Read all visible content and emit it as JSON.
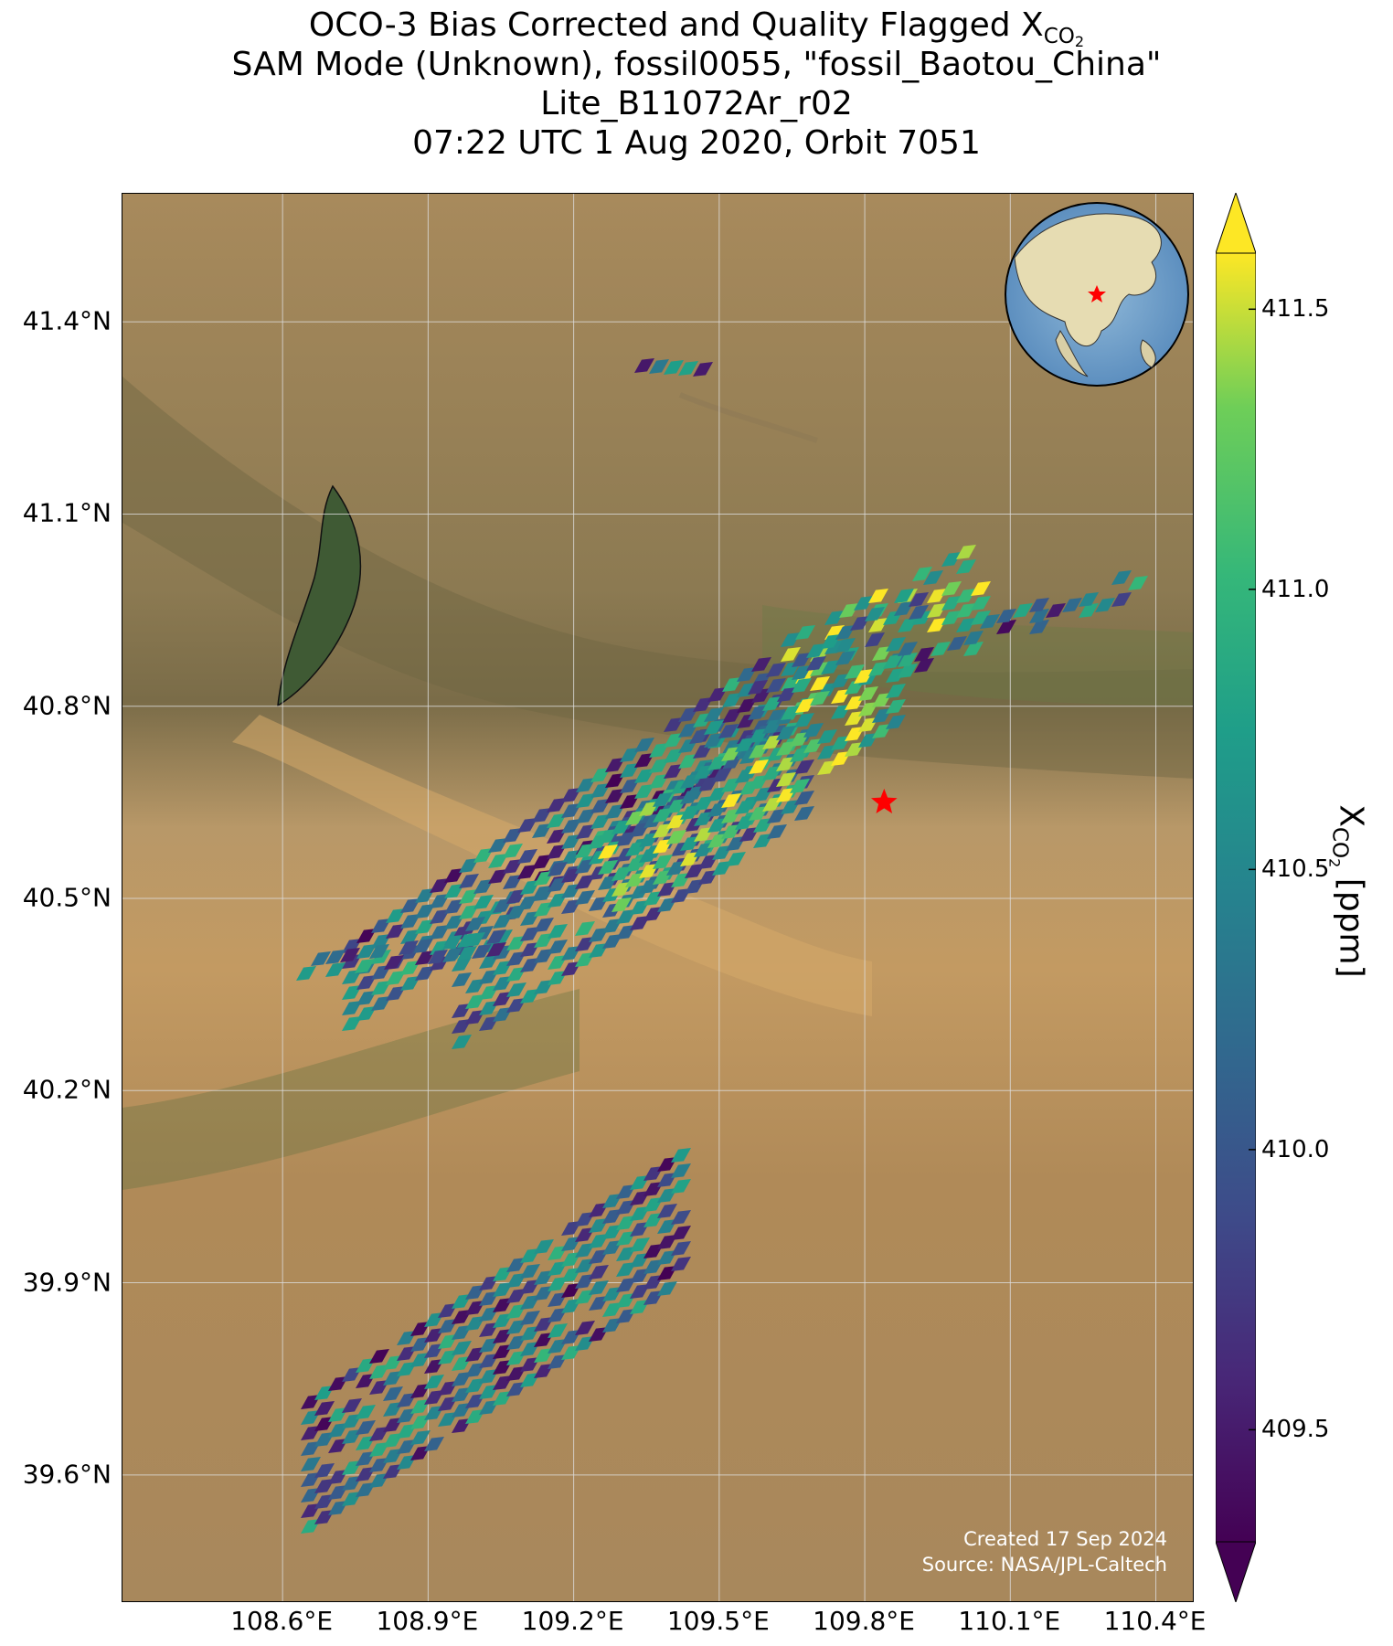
{
  "title": {
    "line1_prefix": "OCO-3 Bias Corrected and Quality Flagged X",
    "line1_sub": "CO",
    "line1_subsub": "2",
    "line2": "SAM Mode (Unknown), fossil0055, \"fossil_Baotou_China\"",
    "line3": "Lite_B11072Ar_r02",
    "line4": "07:22 UTC 1 Aug 2020, Orbit 7051"
  },
  "map": {
    "lon_range": [
      108.27,
      110.48
    ],
    "lat_range": [
      39.4,
      41.6
    ],
    "lon_ticks": [
      "108.6°E",
      "108.9°E",
      "109.2°E",
      "109.5°E",
      "109.8°E",
      "110.1°E",
      "110.4°E"
    ],
    "lon_tick_values": [
      108.6,
      108.9,
      109.2,
      109.5,
      109.8,
      110.1,
      110.4
    ],
    "lat_ticks": [
      "41.4°N",
      "41.1°N",
      "40.8°N",
      "40.5°N",
      "40.2°N",
      "39.9°N",
      "39.6°N"
    ],
    "lat_tick_values": [
      41.4,
      41.1,
      40.8,
      40.5,
      40.2,
      39.9,
      39.6
    ],
    "target_marker": {
      "lon": 109.84,
      "lat": 40.65,
      "color": "#ff0000"
    },
    "credit_line1": "Created 17 Sep 2024",
    "credit_line2": "Source: NASA/JPL-Caltech",
    "colors": {
      "grid": "#dddddd",
      "target": "#ff0000",
      "credit": "#ffffff"
    }
  },
  "colorbar": {
    "label_prefix": "X",
    "label_sub": "CO",
    "label_subsub": "2",
    "label_unit": " [ppm]",
    "ticks": [
      "411.5",
      "411.0",
      "410.5",
      "410.0",
      "409.5"
    ],
    "tick_values": [
      411.5,
      411.0,
      410.5,
      410.0,
      409.5
    ],
    "range": [
      409.3,
      411.6
    ],
    "colormap": "viridis",
    "extend": "both"
  }
}
